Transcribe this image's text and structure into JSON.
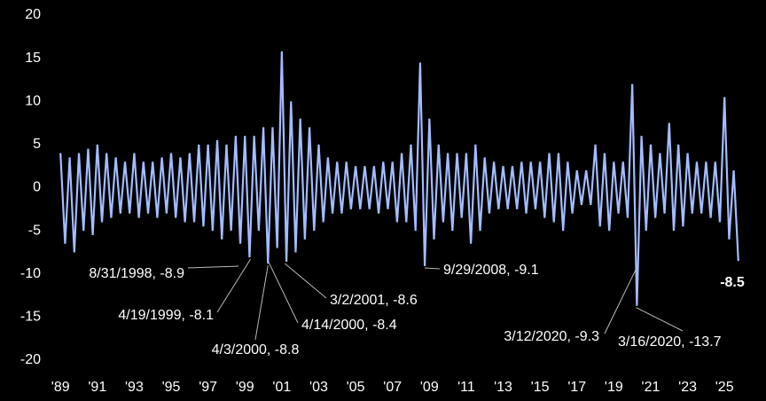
{
  "chart_data": {
    "type": "line",
    "x": [
      1989,
      1989.25,
      1989.5,
      1989.75,
      1990,
      1990.25,
      1990.5,
      1990.75,
      1991,
      1991.25,
      1991.5,
      1991.75,
      1992,
      1992.25,
      1992.5,
      1992.75,
      1993,
      1993.25,
      1993.5,
      1993.75,
      1994,
      1994.25,
      1994.5,
      1994.75,
      1995,
      1995.25,
      1995.5,
      1995.75,
      1996,
      1996.25,
      1996.5,
      1996.75,
      1997,
      1997.25,
      1997.5,
      1997.75,
      1998,
      1998.25,
      1998.5,
      1998.75,
      1999,
      1999.25,
      1999.5,
      1999.75,
      2000,
      2000.25,
      2000.5,
      2000.75,
      2001,
      2001.25,
      2001.5,
      2001.75,
      2002,
      2002.25,
      2002.5,
      2002.75,
      2003,
      2003.25,
      2003.5,
      2003.75,
      2004,
      2004.25,
      2004.5,
      2004.75,
      2005,
      2005.25,
      2005.5,
      2005.75,
      2006,
      2006.25,
      2006.5,
      2006.75,
      2007,
      2007.25,
      2007.5,
      2007.75,
      2008,
      2008.25,
      2008.5,
      2008.75,
      2009,
      2009.25,
      2009.5,
      2009.75,
      2010,
      2010.25,
      2010.5,
      2010.75,
      2011,
      2011.25,
      2011.5,
      2011.75,
      2012,
      2012.25,
      2012.5,
      2012.75,
      2013,
      2013.25,
      2013.5,
      2013.75,
      2014,
      2014.25,
      2014.5,
      2014.75,
      2015,
      2015.25,
      2015.5,
      2015.75,
      2016,
      2016.25,
      2016.5,
      2016.75,
      2017,
      2017.25,
      2017.5,
      2017.75,
      2018,
      2018.25,
      2018.5,
      2018.75,
      2019,
      2019.25,
      2019.5,
      2019.75,
      2020,
      2020.25,
      2020.5,
      2020.75,
      2021,
      2021.25,
      2021.5,
      2021.75,
      2022,
      2022.25,
      2022.5,
      2022.75,
      2023,
      2023.25,
      2023.5,
      2023.75,
      2024,
      2024.25,
      2024.5,
      2024.75,
      2025,
      2025.25,
      2025.5,
      2025.75
    ],
    "series": [
      {
        "color": "#a3bcff",
        "values": [
          4,
          -6.5,
          3.5,
          -7.5,
          4,
          -5,
          4.5,
          -5.5,
          5,
          -4,
          4,
          -3.5,
          3.5,
          -3,
          3,
          -3,
          4,
          -3.5,
          3,
          -3,
          3,
          -3.5,
          3.5,
          -3,
          4,
          -3.5,
          3.5,
          -4,
          4,
          -4,
          5,
          -4.5,
          5,
          -5,
          5.5,
          -6,
          5,
          -5,
          6,
          -6.5,
          6,
          -8.1,
          6,
          -5,
          7,
          -8.8,
          7,
          -7,
          15.8,
          -8.6,
          10,
          -7.5,
          8,
          -6,
          7,
          -5,
          5,
          -4,
          3.5,
          -3,
          3,
          -3,
          3,
          -2.5,
          2.5,
          -2.5,
          2.5,
          -2.5,
          2.5,
          -3,
          3,
          -2.5,
          3,
          -4,
          4,
          -4,
          5,
          -5,
          14.5,
          -9.1,
          8,
          -6,
          5,
          -4,
          4,
          -5,
          4,
          -3.5,
          4,
          -6.5,
          5,
          -5,
          3.5,
          -3,
          3,
          -2.5,
          2.5,
          -2.5,
          2.5,
          -2.5,
          3,
          -3,
          3,
          -2.5,
          3,
          -3.5,
          4,
          -4,
          4,
          -5,
          3,
          -3,
          2,
          -2,
          2,
          -2,
          5,
          -4.5,
          4,
          -5,
          3,
          -3,
          3,
          -3.5,
          12,
          -13.7,
          6,
          -5,
          5,
          -3.5,
          4,
          -3,
          7.5,
          -5,
          5,
          -4.5,
          4,
          -3,
          3,
          -3,
          3,
          -3.5,
          3,
          -4,
          10.5,
          -6,
          2,
          -8.5
        ]
      }
    ],
    "xlim": [
      1988.75,
      2026.0
    ],
    "xticks": [
      {
        "value": 1989,
        "label": "'89"
      },
      {
        "value": 1991,
        "label": "'91"
      },
      {
        "value": 1993,
        "label": "'93"
      },
      {
        "value": 1995,
        "label": "'95"
      },
      {
        "value": 1997,
        "label": "'97"
      },
      {
        "value": 1999,
        "label": "'99"
      },
      {
        "value": 2001,
        "label": "'01"
      },
      {
        "value": 2003,
        "label": "'03"
      },
      {
        "value": 2005,
        "label": "'05"
      },
      {
        "value": 2007,
        "label": "'07"
      },
      {
        "value": 2009,
        "label": "'09"
      },
      {
        "value": 2011,
        "label": "'11"
      },
      {
        "value": 2013,
        "label": "'13"
      },
      {
        "value": 2015,
        "label": "'15"
      },
      {
        "value": 2017,
        "label": "'17"
      },
      {
        "value": 2019,
        "label": "'19"
      },
      {
        "value": 2021,
        "label": "'21"
      },
      {
        "value": 2023,
        "label": "'23"
      },
      {
        "value": 2025,
        "label": "'25"
      }
    ],
    "ylim": [
      -20,
      20
    ],
    "yticks": [
      -20,
      -15,
      -10,
      -5,
      0,
      5,
      10,
      15,
      20
    ],
    "annotations": [
      {
        "label": "8/31/1998, -8.9",
        "x": 1998.66,
        "value": -8.9
      },
      {
        "label": "4/19/1999, -8.1",
        "x": 1999.3,
        "value": -8.1
      },
      {
        "label": "4/3/2000, -8.8",
        "x": 2000.25,
        "value": -8.8
      },
      {
        "label": "4/14/2000, -8.4",
        "x": 2000.28,
        "value": -8.4
      },
      {
        "label": "3/2/2001, -8.6",
        "x": 2001.17,
        "value": -8.6
      },
      {
        "label": "9/29/2008, -9.1",
        "x": 2008.74,
        "value": -9.1
      },
      {
        "label": "3/12/2020, -9.3",
        "x": 2020.19,
        "value": -9.3
      },
      {
        "label": "3/16/2020, -13.7",
        "x": 2020.21,
        "value": -13.7
      }
    ]
  }
}
